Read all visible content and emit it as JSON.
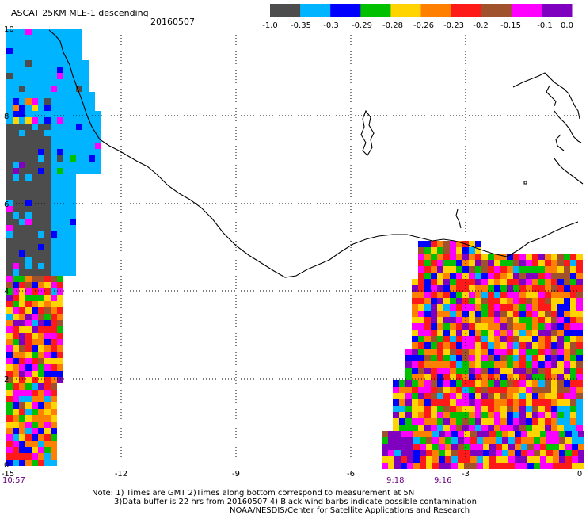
{
  "header": {
    "title": "ASCAT 25KM MLE-1 descending",
    "date": "20160507"
  },
  "legend": {
    "colors": [
      "#4d4d4d",
      "#00b4ff",
      "#0000ff",
      "#00c000",
      "#ffd400",
      "#ff8000",
      "#ff1a1a",
      "#a0522d",
      "#ff00ff",
      "#8000c0"
    ],
    "labels": [
      "-1.0",
      "-0.35",
      "-0.3",
      "-0.29",
      "-0.28",
      "-0.26",
      "-0.23",
      "-0.2",
      "-0.15",
      "-0.1",
      "0.0"
    ]
  },
  "map": {
    "x_ticks": [
      "-15",
      "-12",
      "-9",
      "-6",
      "-3",
      "0"
    ],
    "y_ticks": [
      "0",
      "2",
      "4",
      "6",
      "8",
      "10"
    ],
    "lon_range": [
      -15,
      0
    ],
    "lat_range": [
      0,
      10
    ]
  },
  "times": {
    "left": "10:57",
    "mid1": "9:18",
    "mid2": "9:16"
  },
  "notes": {
    "line1": "Note: 1) Times are GMT 2)Times along bottom correspond to measurement at 5N",
    "line2": "3)Data buffer is 22 hrs from 20160507 4) Black wind barbs indicate possible contamination",
    "line3": "NOAA/NESDIS/Center for Satellite Applications and Research"
  }
}
